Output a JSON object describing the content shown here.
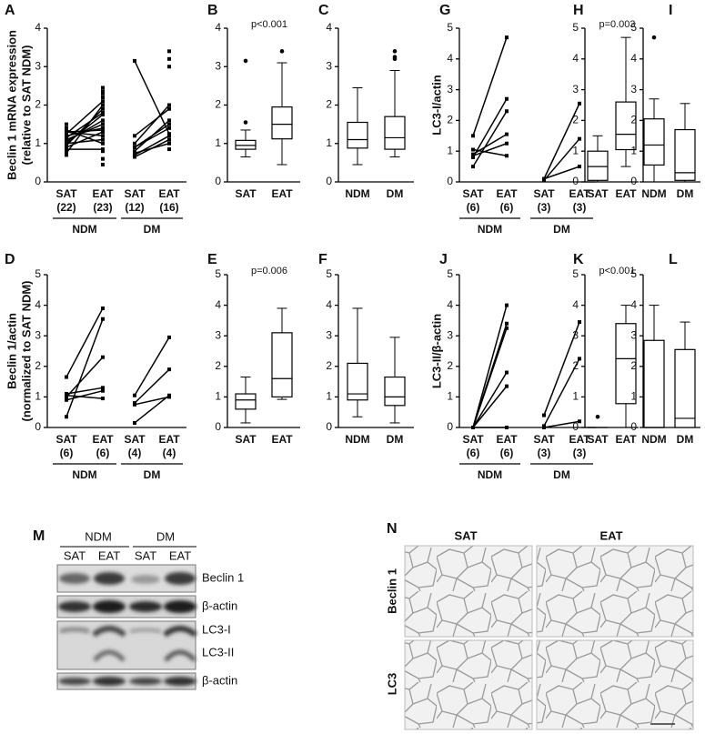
{
  "chart_data": [
    {
      "label": "A",
      "type": "paired",
      "ylim": [
        0,
        4
      ],
      "yticks": [
        0,
        1,
        2,
        3,
        4
      ],
      "ylabel": [
        "Beclin 1 mRNA expression",
        "(relative to SAT NDM)"
      ],
      "groups": [
        {
          "name": "NDM",
          "categories": [
            "SAT",
            "EAT"
          ],
          "n": [
            "(22)",
            "(23)"
          ],
          "pairs": [
            [
              0.95,
              1.9
            ],
            [
              1.0,
              1.75
            ],
            [
              1.1,
              1.5
            ],
            [
              1.2,
              1.4
            ],
            [
              1.3,
              1.2
            ],
            [
              1.35,
              1.0
            ],
            [
              0.9,
              1.3
            ],
            [
              1.05,
              1.6
            ],
            [
              1.25,
              2.1
            ],
            [
              0.85,
              0.85
            ],
            [
              1.15,
              1.8
            ],
            [
              1.3,
              1.35
            ],
            [
              1.0,
              1.1
            ],
            [
              0.75,
              2.0
            ]
          ],
          "extra": [
            [
              0.7,
              1.5,
              1.4,
              0.8
            ],
            [
              2.45,
              2.35,
              2.2,
              0.45,
              0.6,
              0.8,
              1.3,
              2.3
            ]
          ]
        },
        {
          "name": "DM",
          "categories": [
            "SAT",
            "EAT"
          ],
          "n": [
            "(12)",
            "(16)"
          ],
          "pairs": [
            [
              3.15,
              1.25
            ],
            [
              1.2,
              1.9
            ],
            [
              1.0,
              2.0
            ],
            [
              0.9,
              1.5
            ],
            [
              0.8,
              1.6
            ],
            [
              0.7,
              1.2
            ],
            [
              0.65,
              1.1
            ],
            [
              0.75,
              1.0
            ],
            [
              0.9,
              1.4
            ]
          ],
          "extra": [
            [],
            [
              3.4,
              3.2,
              3.0,
              0.85
            ]
          ]
        }
      ]
    },
    {
      "label": "B",
      "type": "box",
      "ylim": [
        0,
        4
      ],
      "yticks": [
        0,
        1,
        2,
        3,
        4
      ],
      "annotation": "p<0.001",
      "categories": [
        "SAT",
        "EAT"
      ],
      "boxes": [
        {
          "min": 0.65,
          "q1": 0.85,
          "median": 0.95,
          "q3": 1.08,
          "max": 1.35,
          "outliers": [
            1.55,
            3.15
          ]
        },
        {
          "min": 0.45,
          "q1": 1.12,
          "median": 1.5,
          "q3": 1.95,
          "max": 3.1,
          "outliers": [
            3.4
          ]
        }
      ]
    },
    {
      "label": "C",
      "type": "box",
      "ylim": [
        0,
        4
      ],
      "yticks": [
        0,
        1,
        2,
        3,
        4
      ],
      "categories": [
        "NDM",
        "DM"
      ],
      "boxes": [
        {
          "min": 0.45,
          "q1": 0.88,
          "median": 1.1,
          "q3": 1.55,
          "max": 2.45,
          "outliers": []
        },
        {
          "min": 0.65,
          "q1": 0.85,
          "median": 1.15,
          "q3": 1.7,
          "max": 2.9,
          "outliers": [
            3.2,
            3.25,
            3.4
          ]
        }
      ]
    },
    {
      "label": "D",
      "type": "paired",
      "ylim": [
        0,
        5
      ],
      "yticks": [
        0,
        1,
        2,
        3,
        4,
        5
      ],
      "ylabel": [
        "Beclin 1/actin",
        "(normalized to SAT NDM)"
      ],
      "groups": [
        {
          "name": "NDM",
          "categories": [
            "SAT",
            "EAT"
          ],
          "n": [
            "(6)",
            "(6)"
          ],
          "pairs": [
            [
              1.65,
              3.9
            ],
            [
              0.35,
              3.55
            ],
            [
              1.0,
              2.3
            ],
            [
              1.1,
              1.3
            ],
            [
              0.9,
              1.2
            ],
            [
              1.05,
              0.95
            ]
          ],
          "extra": [
            [],
            []
          ]
        },
        {
          "name": "DM",
          "categories": [
            "SAT",
            "EAT"
          ],
          "n": [
            "(4)",
            "(4)"
          ],
          "pairs": [
            [
              1.05,
              2.95
            ],
            [
              0.8,
              1.9
            ],
            [
              0.75,
              1.0
            ],
            [
              0.15,
              1.05
            ]
          ],
          "extra": [
            [],
            []
          ]
        }
      ]
    },
    {
      "label": "E",
      "type": "box",
      "ylim": [
        0,
        5
      ],
      "yticks": [
        0,
        1,
        2,
        3,
        4,
        5
      ],
      "annotation": "p=0.006",
      "categories": [
        "SAT",
        "EAT"
      ],
      "boxes": [
        {
          "min": 0.15,
          "q1": 0.6,
          "median": 0.9,
          "q3": 1.1,
          "max": 1.65,
          "outliers": []
        },
        {
          "min": 0.92,
          "q1": 1.0,
          "median": 1.6,
          "q3": 3.1,
          "max": 3.9,
          "outliers": []
        }
      ]
    },
    {
      "label": "F",
      "type": "box",
      "ylim": [
        0,
        5
      ],
      "yticks": [
        0,
        1,
        2,
        3,
        4,
        5
      ],
      "categories": [
        "NDM",
        "DM"
      ],
      "boxes": [
        {
          "min": 0.35,
          "q1": 0.9,
          "median": 1.1,
          "q3": 2.1,
          "max": 3.9,
          "outliers": []
        },
        {
          "min": 0.15,
          "q1": 0.72,
          "median": 1.0,
          "q3": 1.65,
          "max": 2.95,
          "outliers": []
        }
      ]
    },
    {
      "label": "G",
      "type": "paired",
      "ylim": [
        0,
        5
      ],
      "yticks": [
        0,
        1,
        2,
        3,
        4,
        5
      ],
      "ylabel": [
        "LC3-I/actin"
      ],
      "groups": [
        {
          "name": "NDM",
          "categories": [
            "SAT",
            "EAT"
          ],
          "n": [
            "(6)",
            "(6)"
          ],
          "pairs": [
            [
              1.5,
              4.7
            ],
            [
              0.8,
              2.7
            ],
            [
              0.5,
              2.3
            ],
            [
              0.9,
              1.55
            ],
            [
              0.85,
              1.25
            ],
            [
              1.05,
              0.85
            ]
          ],
          "extra": [
            [],
            []
          ]
        },
        {
          "name": "DM",
          "categories": [
            "SAT",
            "EAT"
          ],
          "n": [
            "(3)",
            "(3)"
          ],
          "pairs": [
            [
              0.1,
              2.55
            ],
            [
              0.05,
              1.4
            ],
            [
              0.1,
              0.5
            ]
          ],
          "extra": [
            [],
            []
          ]
        }
      ]
    },
    {
      "label": "H",
      "type": "box",
      "ylim": [
        0,
        5
      ],
      "yticks": [
        0,
        1,
        2,
        3,
        4,
        5
      ],
      "annotation": "p=0.003",
      "categories": [
        "SAT",
        "EAT"
      ],
      "boxes": [
        {
          "min": 0,
          "q1": 0.05,
          "median": 0.5,
          "q3": 1.0,
          "max": 1.5,
          "outliers": []
        },
        {
          "min": 0.5,
          "q1": 1.05,
          "median": 1.55,
          "q3": 2.6,
          "max": 4.7,
          "outliers": []
        }
      ]
    },
    {
      "label": "I",
      "type": "box",
      "ylim": [
        0,
        5
      ],
      "yticks": [
        0,
        1,
        2,
        3,
        4,
        5
      ],
      "categories": [
        "NDM",
        "DM"
      ],
      "boxes": [
        {
          "min": 0,
          "q1": 0.55,
          "median": 1.2,
          "q3": 2.05,
          "max": 2.7,
          "outliers": [
            4.7
          ]
        },
        {
          "min": 0,
          "q1": 0.05,
          "median": 0.3,
          "q3": 1.7,
          "max": 2.55,
          "outliers": []
        }
      ]
    },
    {
      "label": "J",
      "type": "paired",
      "ylim": [
        0,
        5
      ],
      "yticks": [
        0,
        1,
        2,
        3,
        4,
        5
      ],
      "ylabel": [
        "LC3-II/β-actin"
      ],
      "groups": [
        {
          "name": "NDM",
          "categories": [
            "SAT",
            "EAT"
          ],
          "n": [
            "(6)",
            "(6)"
          ],
          "pairs": [
            [
              0,
              4.0
            ],
            [
              0,
              3.4
            ],
            [
              0,
              3.25
            ],
            [
              0,
              1.8
            ],
            [
              0,
              1.35
            ],
            [
              0,
              0
            ]
          ],
          "extra": [
            [],
            []
          ]
        },
        {
          "name": "DM",
          "categories": [
            "SAT",
            "EAT"
          ],
          "n": [
            "(3)",
            "(3)"
          ],
          "pairs": [
            [
              0.4,
              3.45
            ],
            [
              0.05,
              2.25
            ],
            [
              0,
              0.2
            ]
          ],
          "extra": [
            [],
            []
          ]
        }
      ]
    },
    {
      "label": "K",
      "type": "box",
      "ylim": [
        0,
        5
      ],
      "yticks": [
        0,
        1,
        2,
        3,
        4,
        5
      ],
      "annotation": "p<0.001",
      "categories": [
        "SAT",
        "EAT"
      ],
      "boxes": [
        {
          "min": 0,
          "q1": 0,
          "median": 0,
          "q3": 0,
          "max": 0,
          "outliers": [
            0.35
          ]
        },
        {
          "min": 0,
          "q1": 0.78,
          "median": 2.25,
          "q3": 3.4,
          "max": 4.0,
          "outliers": []
        }
      ]
    },
    {
      "label": "L",
      "type": "box",
      "ylim": [
        0,
        5
      ],
      "yticks": [
        0,
        1,
        2,
        3,
        4,
        5
      ],
      "categories": [
        "NDM",
        "DM"
      ],
      "boxes": [
        {
          "min": 0,
          "q1": 0,
          "median": 0,
          "q3": 2.85,
          "max": 4.0,
          "outliers": []
        },
        {
          "min": 0,
          "q1": 0,
          "median": 0.3,
          "q3": 2.55,
          "max": 3.45,
          "outliers": []
        }
      ]
    }
  ],
  "blot": {
    "label": "M",
    "groups": [
      "NDM",
      "DM"
    ],
    "lanes": [
      "SAT",
      "EAT",
      "SAT",
      "EAT"
    ],
    "rows": [
      "Beclin 1",
      "β-actin",
      "LC3-I",
      "LC3-II",
      "β-actin"
    ]
  },
  "histology": {
    "label": "N",
    "columns": [
      "SAT",
      "EAT"
    ],
    "rows": [
      "Beclin 1",
      "LC3"
    ]
  }
}
